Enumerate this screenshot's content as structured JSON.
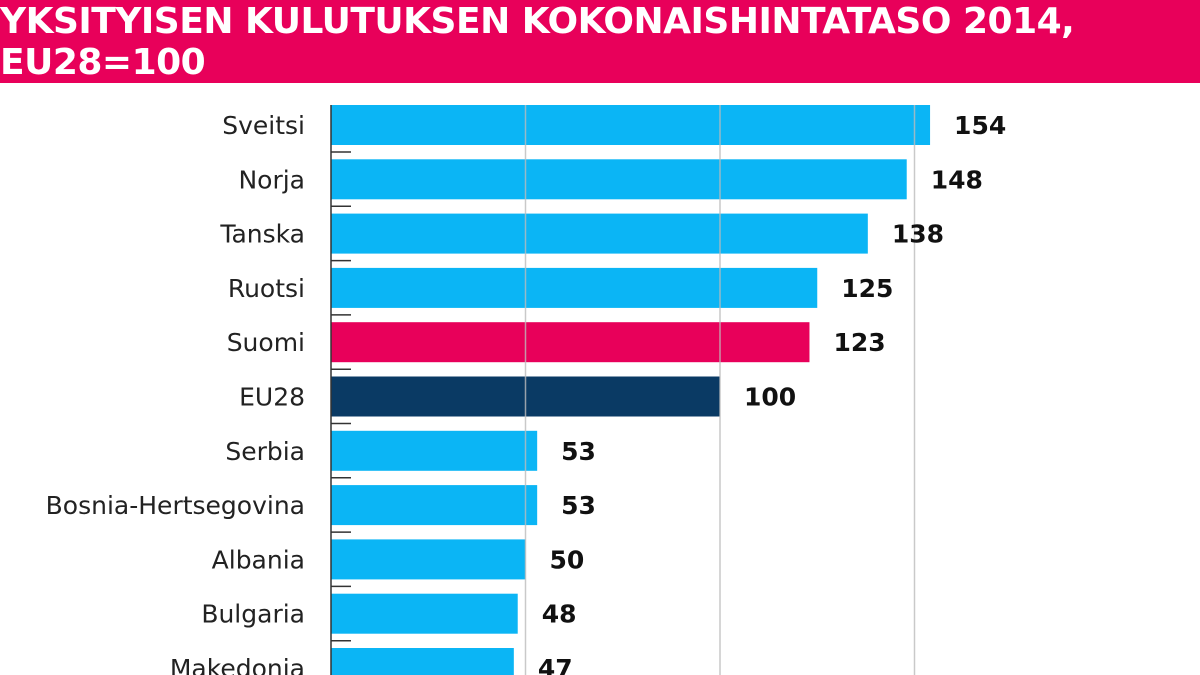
{
  "chart_data": {
    "type": "bar",
    "orientation": "horizontal",
    "title": "YKSITYISEN KULUTUKSEN KOKONAISHINTATASO 2014, EU28=100",
    "categories": [
      "Sveitsi",
      "Norja",
      "Tanska",
      "Ruotsi",
      "Suomi",
      "EU28",
      "Serbia",
      "Bosnia-Hertsegovina",
      "Albania",
      "Bulgaria",
      "Makedonia"
    ],
    "values": [
      154,
      148,
      138,
      125,
      123,
      100,
      53,
      53,
      50,
      48,
      47
    ],
    "bar_colors": [
      "#0bb5f5",
      "#0bb5f5",
      "#0bb5f5",
      "#0bb5f5",
      "#e8005a",
      "#0a3a64",
      "#0bb5f5",
      "#0bb5f5",
      "#0bb5f5",
      "#0bb5f5",
      "#0bb5f5"
    ],
    "xlim": [
      0,
      160
    ],
    "gridlines": [
      50,
      100,
      150
    ],
    "grid": true,
    "legend": "none",
    "title_bar_color": "#e8005a"
  }
}
